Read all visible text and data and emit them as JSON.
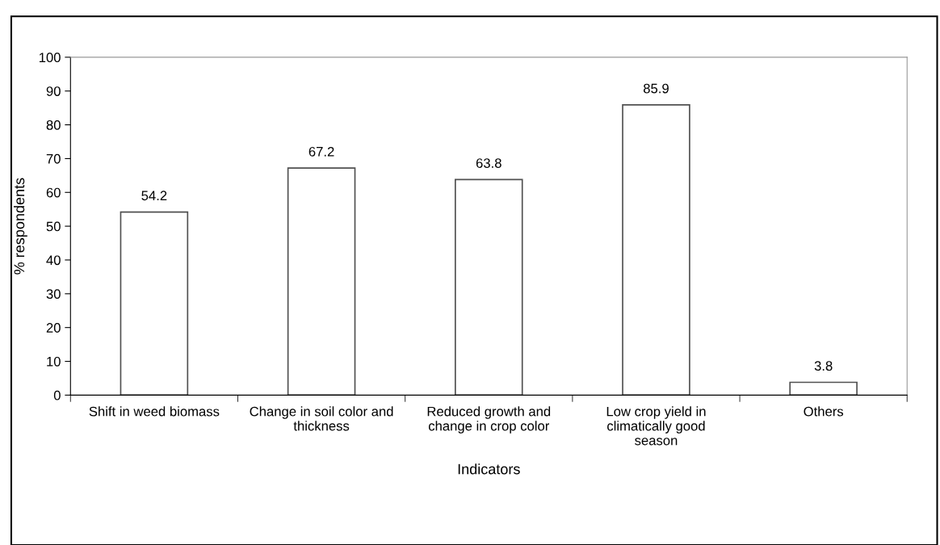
{
  "chart_data": {
    "type": "bar",
    "categories": [
      "Shift in weed biomass",
      "Change in soil color and\nthickness",
      "Reduced growth and\nchange in crop color",
      "Low crop yield in\nclimatically good\nseason",
      "Others"
    ],
    "values": [
      54.2,
      67.2,
      63.8,
      85.9,
      3.8
    ],
    "color": "#505050",
    "xlabel": "Indicators",
    "ylabel": "% respondents",
    "ylim": [
      0,
      100
    ],
    "yticks": [
      0,
      10,
      20,
      30,
      40,
      50,
      60,
      70,
      80,
      90,
      100
    ],
    "data_labels": true,
    "grid": false,
    "legend": false
  }
}
